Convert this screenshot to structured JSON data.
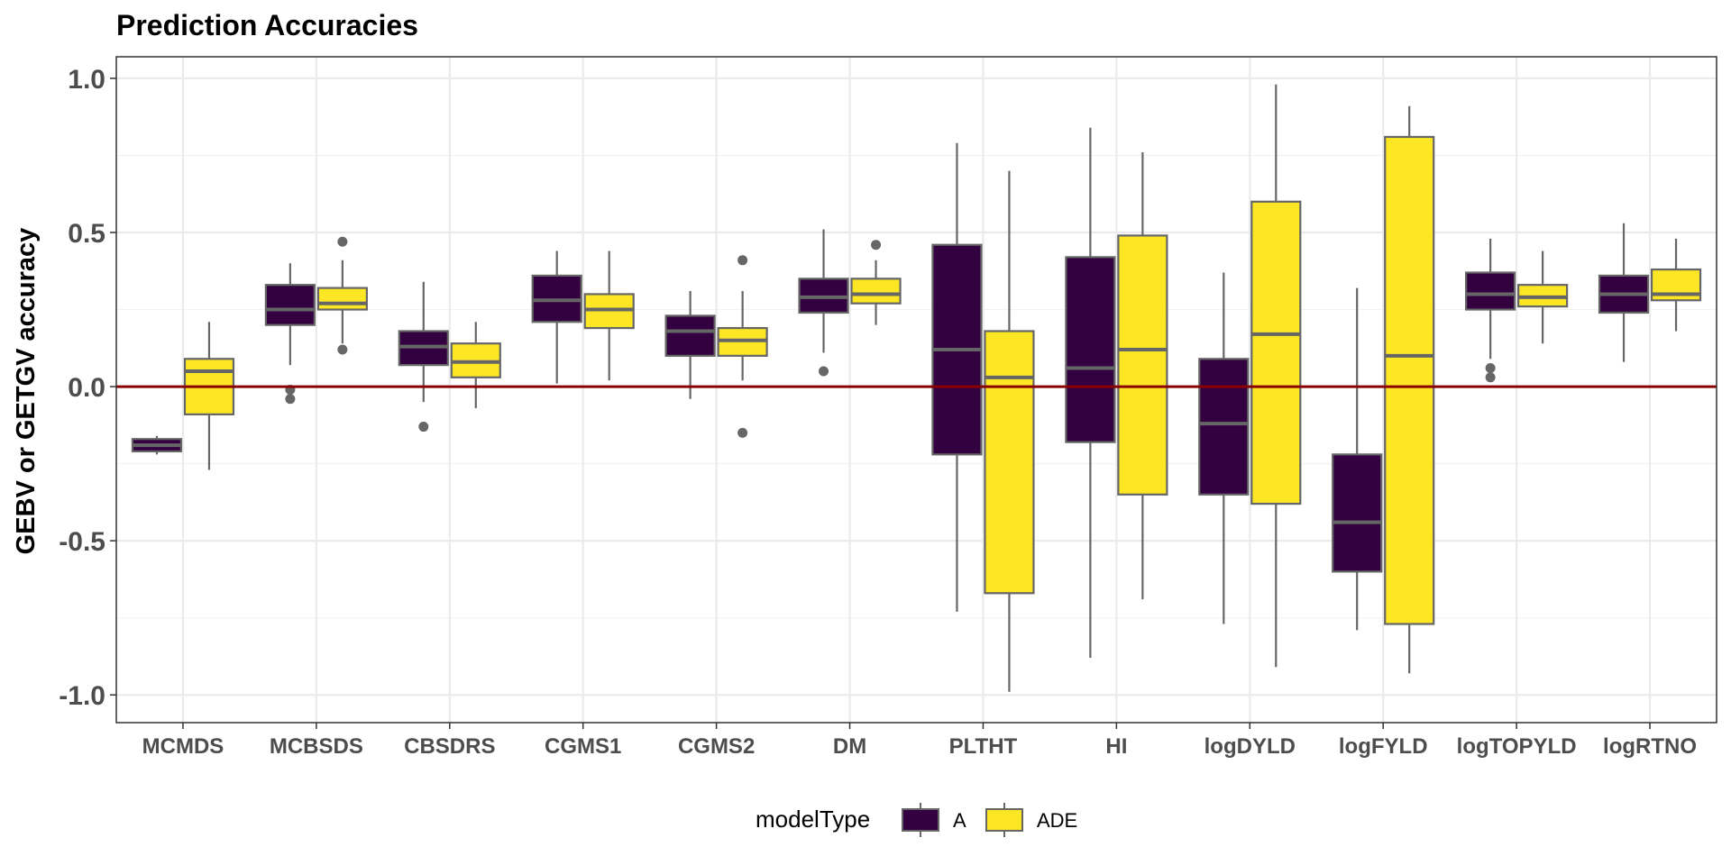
{
  "chart_data": {
    "type": "boxplot",
    "title": "Prediction Accuracies",
    "xlabel": "",
    "ylabel": "GEBV or GETGV accuracy",
    "ylim": [
      -1.09,
      1.07
    ],
    "yticks": [
      -1.0,
      -0.5,
      0.0,
      0.5,
      1.0
    ],
    "ytick_labels": [
      "-1.0",
      "-0.5",
      "0.0",
      "0.5",
      "1.0"
    ],
    "grid": true,
    "hline": {
      "y": 0.0,
      "color": "#8b0000"
    },
    "categories": [
      "MCMDS",
      "MCBSDS",
      "CBSDRS",
      "CGMS1",
      "CGMS2",
      "DM",
      "PLTHT",
      "HI",
      "logDYLD",
      "logFYLD",
      "logTOPYLD",
      "logRTNO"
    ],
    "legend": {
      "title": "modelType",
      "position": "bottom"
    },
    "series": [
      {
        "name": "A",
        "color": "#330040",
        "boxes": [
          {
            "lower": -0.16,
            "q1": -0.21,
            "median": -0.19,
            "q3": -0.17,
            "upper": -0.22,
            "outliers": []
          },
          {
            "lower": 0.07,
            "q1": 0.2,
            "median": 0.25,
            "q3": 0.33,
            "upper": 0.4,
            "outliers": [
              -0.01,
              -0.04
            ]
          },
          {
            "lower": -0.05,
            "q1": 0.07,
            "median": 0.13,
            "q3": 0.18,
            "upper": 0.34,
            "outliers": [
              -0.13
            ]
          },
          {
            "lower": 0.01,
            "q1": 0.21,
            "median": 0.28,
            "q3": 0.36,
            "upper": 0.44,
            "outliers": []
          },
          {
            "lower": -0.04,
            "q1": 0.1,
            "median": 0.18,
            "q3": 0.23,
            "upper": 0.31,
            "outliers": []
          },
          {
            "lower": 0.11,
            "q1": 0.24,
            "median": 0.29,
            "q3": 0.35,
            "upper": 0.51,
            "outliers": [
              0.05
            ]
          },
          {
            "lower": -0.73,
            "q1": -0.22,
            "median": 0.12,
            "q3": 0.46,
            "upper": 0.79,
            "outliers": []
          },
          {
            "lower": -0.88,
            "q1": -0.18,
            "median": 0.06,
            "q3": 0.42,
            "upper": 0.84,
            "outliers": []
          },
          {
            "lower": -0.77,
            "q1": -0.35,
            "median": -0.12,
            "q3": 0.09,
            "upper": 0.37,
            "outliers": []
          },
          {
            "lower": -0.79,
            "q1": -0.6,
            "median": -0.44,
            "q3": -0.22,
            "upper": 0.32,
            "outliers": []
          },
          {
            "lower": 0.09,
            "q1": 0.25,
            "median": 0.3,
            "q3": 0.37,
            "upper": 0.48,
            "outliers": [
              0.06,
              0.03
            ]
          },
          {
            "lower": 0.08,
            "q1": 0.24,
            "median": 0.3,
            "q3": 0.36,
            "upper": 0.53,
            "outliers": []
          }
        ]
      },
      {
        "name": "ADE",
        "color": "#fde725",
        "boxes": [
          {
            "lower": -0.27,
            "q1": -0.09,
            "median": 0.05,
            "q3": 0.09,
            "upper": 0.21,
            "outliers": []
          },
          {
            "lower": 0.14,
            "q1": 0.25,
            "median": 0.27,
            "q3": 0.32,
            "upper": 0.41,
            "outliers": [
              0.47,
              0.12
            ]
          },
          {
            "lower": -0.07,
            "q1": 0.03,
            "median": 0.08,
            "q3": 0.14,
            "upper": 0.21,
            "outliers": []
          },
          {
            "lower": 0.02,
            "q1": 0.19,
            "median": 0.25,
            "q3": 0.3,
            "upper": 0.44,
            "outliers": []
          },
          {
            "lower": 0.02,
            "q1": 0.1,
            "median": 0.15,
            "q3": 0.19,
            "upper": 0.31,
            "outliers": [
              0.41,
              -0.15
            ]
          },
          {
            "lower": 0.2,
            "q1": 0.27,
            "median": 0.3,
            "q3": 0.35,
            "upper": 0.41,
            "outliers": [
              0.46
            ]
          },
          {
            "lower": -0.99,
            "q1": -0.67,
            "median": 0.03,
            "q3": 0.18,
            "upper": 0.7,
            "outliers": []
          },
          {
            "lower": -0.69,
            "q1": -0.35,
            "median": 0.12,
            "q3": 0.49,
            "upper": 0.76,
            "outliers": []
          },
          {
            "lower": -0.91,
            "q1": -0.38,
            "median": 0.17,
            "q3": 0.6,
            "upper": 0.98,
            "outliers": []
          },
          {
            "lower": -0.93,
            "q1": -0.77,
            "median": 0.1,
            "q3": 0.81,
            "upper": 0.91,
            "outliers": []
          },
          {
            "lower": 0.14,
            "q1": 0.26,
            "median": 0.29,
            "q3": 0.33,
            "upper": 0.44,
            "outliers": []
          },
          {
            "lower": 0.18,
            "q1": 0.28,
            "median": 0.3,
            "q3": 0.38,
            "upper": 0.48,
            "outliers": []
          }
        ]
      }
    ]
  }
}
